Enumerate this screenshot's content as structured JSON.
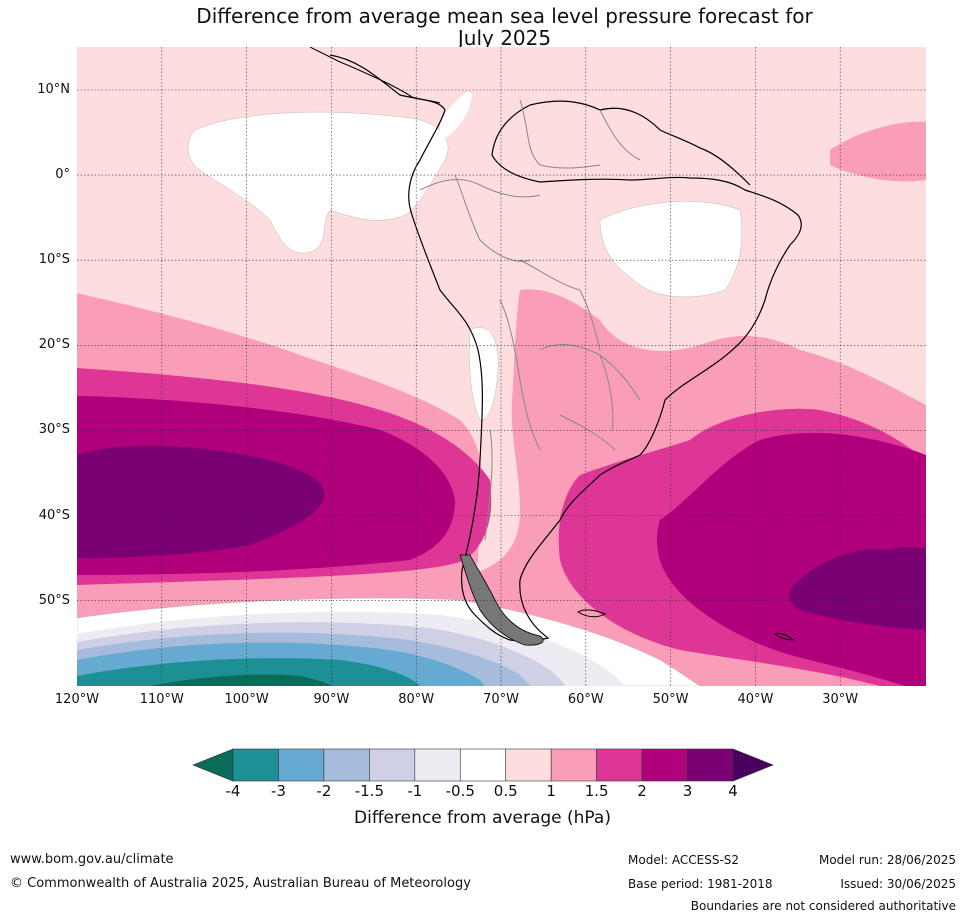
{
  "title_line1": "Difference from average mean sea level pressure forecast for",
  "title_line2": "July 2025",
  "lat_labels": [
    {
      "label": "10°N",
      "lat": 10
    },
    {
      "label": "0°",
      "lat": 0
    },
    {
      "label": "10°S",
      "lat": -10
    },
    {
      "label": "20°S",
      "lat": -20
    },
    {
      "label": "30°S",
      "lat": -30
    },
    {
      "label": "40°S",
      "lat": -40
    },
    {
      "label": "50°S",
      "lat": -50
    }
  ],
  "lon_labels": [
    {
      "label": "120°W",
      "lon": -120
    },
    {
      "label": "110°W",
      "lon": -110
    },
    {
      "label": "100°W",
      "lon": -100
    },
    {
      "label": "90°W",
      "lon": -90
    },
    {
      "label": "80°W",
      "lon": -80
    },
    {
      "label": "70°W",
      "lon": -70
    },
    {
      "label": "60°W",
      "lon": -60
    },
    {
      "label": "50°W",
      "lon": -50
    },
    {
      "label": "40°W",
      "lon": -40
    },
    {
      "label": "30°W",
      "lon": -30
    }
  ],
  "colorbar": {
    "ticks": [
      "-4",
      "-3",
      "-2",
      "-1.5",
      "-1",
      "-0.5",
      "0.5",
      "1",
      "1.5",
      "2",
      "3",
      "4"
    ],
    "colors": [
      "#0b6b5a",
      "#1d9096",
      "#66aad2",
      "#a6bcdc",
      "#cfd0e6",
      "#efebf2",
      "#ffffff",
      "#fddddd",
      "#f99db8",
      "#de3696",
      "#b0007b",
      "#7a0073",
      "#4b0060"
    ],
    "label": "Difference from average (hPa)"
  },
  "footer": {
    "website": "www.bom.gov.au/climate",
    "copyright": "© Commonwealth of Australia 2025, Australian Bureau of Meteorology",
    "model": "Model: ACCESS-S2",
    "base_period": "Base period: 1981-2018",
    "model_run": "Model run: 28/06/2025",
    "issued": "Issued: 30/06/2025",
    "disclaimer": "Boundaries are not considered authoritative"
  }
}
